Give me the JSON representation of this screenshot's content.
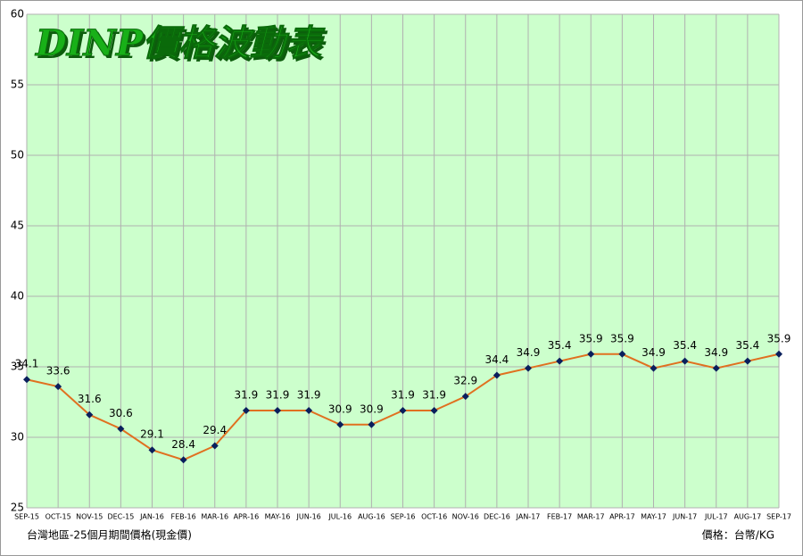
{
  "chart_data": {
    "type": "line",
    "title": "DINP價格波動表",
    "categories": [
      "SEP-15",
      "OCT-15",
      "NOV-15",
      "DEC-15",
      "JAN-16",
      "FEB-16",
      "MAR-16",
      "APR-16",
      "MAY-16",
      "JUN-16",
      "JUL-16",
      "AUG-16",
      "SEP-16",
      "OCT-16",
      "NOV-16",
      "DEC-16",
      "JAN-17",
      "FEB-17",
      "MAR-17",
      "APR-17",
      "MAY-17",
      "JUN-17",
      "JUL-17",
      "AUG-17",
      "SEP-17"
    ],
    "series": [
      {
        "name": "DINP",
        "color": "#e07020",
        "marker_color": "#0a1f5c",
        "values": [
          34.1,
          33.6,
          31.6,
          30.6,
          29.1,
          28.4,
          29.4,
          31.9,
          31.9,
          31.9,
          30.9,
          30.9,
          31.9,
          31.9,
          32.9,
          34.4,
          34.9,
          35.4,
          35.9,
          35.9,
          34.9,
          35.4,
          34.9,
          35.4,
          35.9
        ]
      }
    ],
    "ylim": [
      25,
      60
    ],
    "yticks": [
      25,
      30,
      35,
      40,
      45,
      50,
      55,
      60
    ],
    "grid": true,
    "footnote_left": "台灣地區-25個月期間價格(現金價)",
    "footnote_right": "價格：台幣/KG"
  }
}
